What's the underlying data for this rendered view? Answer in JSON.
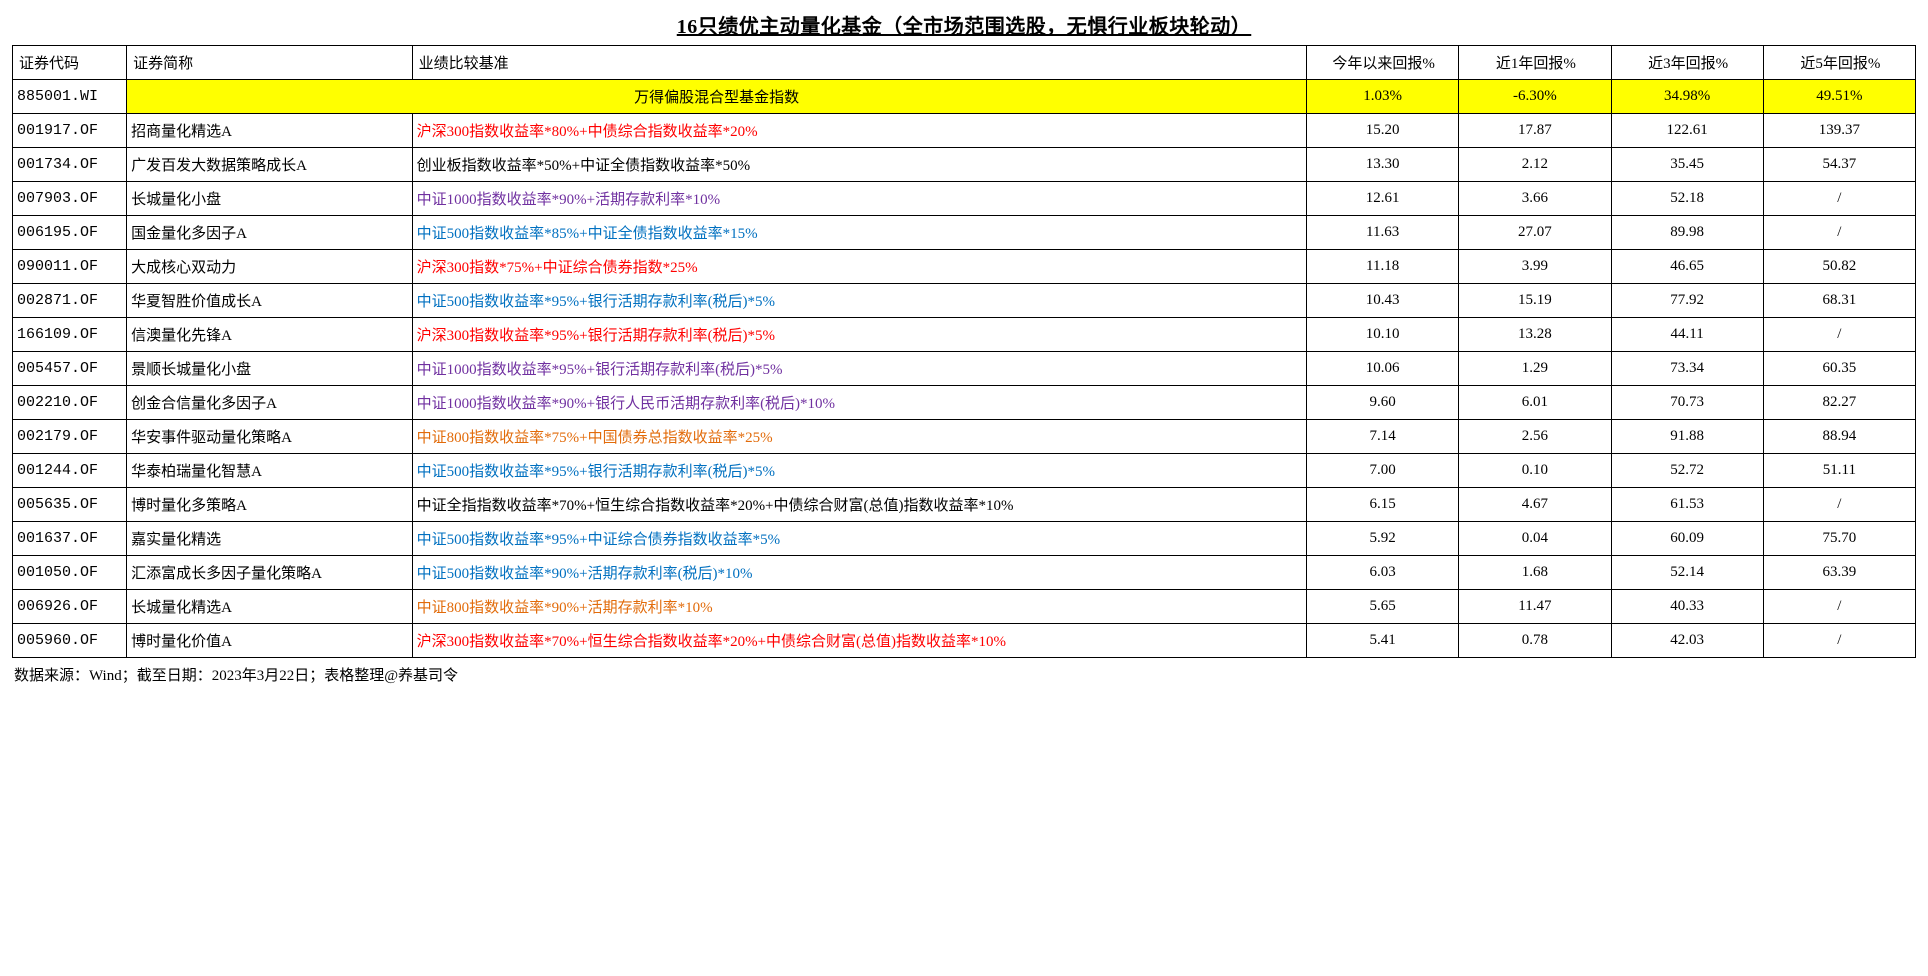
{
  "title": "16只绩优主动量化基金（全市场范围选股，无惧行业板块轮动）",
  "columns": {
    "code": {
      "label": "证券代码",
      "width": "6%"
    },
    "name": {
      "label": "证券简称",
      "width": "15%"
    },
    "bench": {
      "label": "业绩比较基准",
      "width": "47%"
    },
    "ytd": {
      "label": "今年以来回报%",
      "width": "8%"
    },
    "r1y": {
      "label": "近1年回报%",
      "width": "8%"
    },
    "r3y": {
      "label": "近3年回报%",
      "width": "8%"
    },
    "r5y": {
      "label": "近5年回报%",
      "width": "8%"
    }
  },
  "highlight": {
    "code": "885001.WI",
    "merged_label": "万得偏股混合型基金指数",
    "ytd": "1.03%",
    "r1y": "-6.30%",
    "r3y": "34.98%",
    "r5y": "49.51%",
    "bg": "#ffff00"
  },
  "rows": [
    {
      "code": "001917.OF",
      "name": "招商量化精选A",
      "bench": "沪深300指数收益率*80%+中债综合指数收益率*20%",
      "color": "c-red",
      "ytd": "15.20",
      "r1y": "17.87",
      "r3y": "122.61",
      "r5y": "139.37"
    },
    {
      "code": "001734.OF",
      "name": "广发百发大数据策略成长A",
      "bench": "创业板指数收益率*50%+中证全债指数收益率*50%",
      "color": "c-black",
      "ytd": "13.30",
      "r1y": "2.12",
      "r3y": "35.45",
      "r5y": "54.37"
    },
    {
      "code": "007903.OF",
      "name": "长城量化小盘",
      "bench": "中证1000指数收益率*90%+活期存款利率*10%",
      "color": "c-purple",
      "ytd": "12.61",
      "r1y": "3.66",
      "r3y": "52.18",
      "r5y": "/"
    },
    {
      "code": "006195.OF",
      "name": "国金量化多因子A",
      "bench": "中证500指数收益率*85%+中证全债指数收益率*15%",
      "color": "c-blue",
      "ytd": "11.63",
      "r1y": "27.07",
      "r3y": "89.98",
      "r5y": "/"
    },
    {
      "code": "090011.OF",
      "name": "大成核心双动力",
      "bench": "沪深300指数*75%+中证综合债券指数*25%",
      "color": "c-red",
      "ytd": "11.18",
      "r1y": "3.99",
      "r3y": "46.65",
      "r5y": "50.82"
    },
    {
      "code": "002871.OF",
      "name": "华夏智胜价值成长A",
      "bench": "中证500指数收益率*95%+银行活期存款利率(税后)*5%",
      "color": "c-blue",
      "ytd": "10.43",
      "r1y": "15.19",
      "r3y": "77.92",
      "r5y": "68.31"
    },
    {
      "code": "166109.OF",
      "name": "信澳量化先锋A",
      "bench": "沪深300指数收益率*95%+银行活期存款利率(税后)*5%",
      "color": "c-red",
      "ytd": "10.10",
      "r1y": "13.28",
      "r3y": "44.11",
      "r5y": "/"
    },
    {
      "code": "005457.OF",
      "name": "景顺长城量化小盘",
      "bench": "中证1000指数收益率*95%+银行活期存款利率(税后)*5%",
      "color": "c-purple",
      "ytd": "10.06",
      "r1y": "1.29",
      "r3y": "73.34",
      "r5y": "60.35"
    },
    {
      "code": "002210.OF",
      "name": "创金合信量化多因子A",
      "bench": "中证1000指数收益率*90%+银行人民币活期存款利率(税后)*10%",
      "color": "c-purple",
      "ytd": "9.60",
      "r1y": "6.01",
      "r3y": "70.73",
      "r5y": "82.27"
    },
    {
      "code": "002179.OF",
      "name": "华安事件驱动量化策略A",
      "bench": "中证800指数收益率*75%+中国债券总指数收益率*25%",
      "color": "c-orange",
      "ytd": "7.14",
      "r1y": "2.56",
      "r3y": "91.88",
      "r5y": "88.94"
    },
    {
      "code": "001244.OF",
      "name": "华泰柏瑞量化智慧A",
      "bench": "中证500指数收益率*95%+银行活期存款利率(税后)*5%",
      "color": "c-blue",
      "ytd": "7.00",
      "r1y": "0.10",
      "r3y": "52.72",
      "r5y": "51.11"
    },
    {
      "code": "005635.OF",
      "name": "博时量化多策略A",
      "bench": "中证全指指数收益率*70%+恒生综合指数收益率*20%+中债综合财富(总值)指数收益率*10%",
      "color": "c-black",
      "ytd": "6.15",
      "r1y": "4.67",
      "r3y": "61.53",
      "r5y": "/"
    },
    {
      "code": "001637.OF",
      "name": "嘉实量化精选",
      "bench": "中证500指数收益率*95%+中证综合债券指数收益率*5%",
      "color": "c-blue",
      "ytd": "5.92",
      "r1y": "0.04",
      "r3y": "60.09",
      "r5y": "75.70"
    },
    {
      "code": "001050.OF",
      "name": "汇添富成长多因子量化策略A",
      "bench": "中证500指数收益率*90%+活期存款利率(税后)*10%",
      "color": "c-blue",
      "ytd": "6.03",
      "r1y": "1.68",
      "r3y": "52.14",
      "r5y": "63.39"
    },
    {
      "code": "006926.OF",
      "name": "长城量化精选A",
      "bench": "中证800指数收益率*90%+活期存款利率*10%",
      "color": "c-orange",
      "ytd": "5.65",
      "r1y": "11.47",
      "r3y": "40.33",
      "r5y": "/"
    },
    {
      "code": "005960.OF",
      "name": "博时量化价值A",
      "bench": "沪深300指数收益率*70%+恒生综合指数收益率*20%+中债综合财富(总值)指数收益率*10%",
      "color": "c-red",
      "ytd": "5.41",
      "r1y": "0.78",
      "r3y": "42.03",
      "r5y": "/"
    }
  ],
  "footer": "数据来源：Wind；截至日期：2023年3月22日；表格整理@养基司令"
}
